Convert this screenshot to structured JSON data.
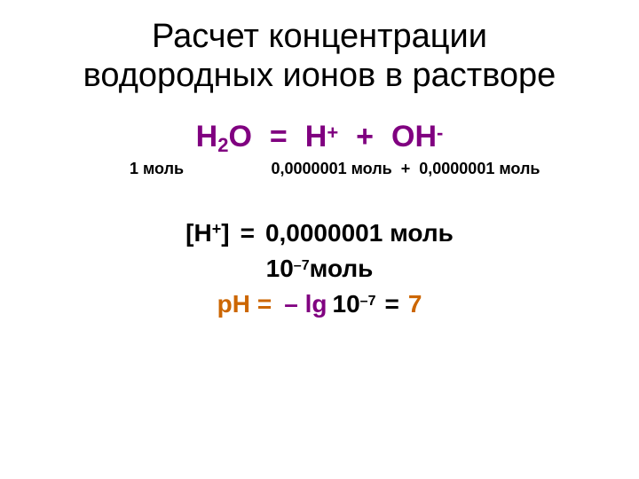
{
  "title_line1": "Расчет концентрации",
  "title_line2": "водородных ионов в растворе",
  "equation": {
    "h2o_H": "Н",
    "h2o_sub": "2",
    "h2o_O": "О",
    "op_eq": "=",
    "h_H": "Н",
    "h_sup": "+",
    "op_plus": "+",
    "oh_O": "О",
    "oh_H": "Н",
    "oh_sup": "-"
  },
  "mol": {
    "a": "1 моль",
    "b": "0,0000001 моль",
    "plus": "+",
    "c": "0,0000001 моль"
  },
  "conc": {
    "lb": "[",
    "h": "Н",
    "sup": "+",
    "rb": "]",
    "eq": "=",
    "val": "0,0000001 моль"
  },
  "ten": {
    "base": "10",
    "sup": "–7",
    "unit": " моль"
  },
  "ph": {
    "label": "рН",
    "eqop": "=",
    "lg": "– lg",
    "base": "10",
    "sup": "–7",
    "eq2": "=",
    "res": "7"
  },
  "colors": {
    "background": "#ffffff",
    "text": "#000000",
    "species": "#800080",
    "accent": "#cc6600"
  }
}
